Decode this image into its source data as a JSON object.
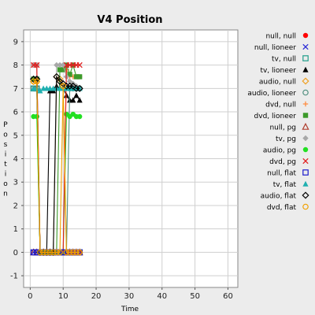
{
  "chart_data": {
    "type": "scatter",
    "title": "V4 Position",
    "xlabel": "Time",
    "ylabel": "Position",
    "xlim": [
      -2,
      63
    ],
    "ylim": [
      -1.5,
      9.5
    ],
    "xticks": [
      0,
      10,
      20,
      30,
      40,
      50,
      60
    ],
    "yticks": [
      -1,
      0,
      1,
      2,
      3,
      4,
      5,
      6,
      7,
      8,
      9
    ],
    "grid": true,
    "legend_position": "right",
    "series": [
      {
        "name": "null, null",
        "color": "#ff0000",
        "marker": "circle-filled",
        "line": true,
        "x": [
          1,
          2,
          3,
          4,
          5,
          6,
          7,
          8,
          9,
          10,
          11,
          12,
          13,
          14,
          15
        ],
        "y": [
          8,
          8,
          0,
          0,
          0,
          0,
          0,
          0,
          0,
          0,
          0,
          0,
          0,
          0,
          0
        ]
      },
      {
        "name": "null, lioneer",
        "color": "#2a2ad6",
        "marker": "x",
        "line": true,
        "x": [
          1,
          2,
          3,
          4,
          5,
          6,
          7,
          8,
          9,
          10,
          11,
          12,
          13,
          14,
          15
        ],
        "y": [
          0,
          0,
          0,
          0,
          0,
          0,
          0,
          0,
          0,
          0,
          0,
          0,
          0,
          0,
          0
        ]
      },
      {
        "name": "tv, null",
        "color": "#1f9e8a",
        "marker": "square-open",
        "line": true,
        "x": [
          1,
          2,
          3,
          4,
          5,
          6,
          7,
          8,
          9,
          10,
          11,
          12,
          13,
          14,
          15
        ],
        "y": [
          7,
          7,
          0,
          0,
          0,
          0,
          0,
          0,
          0,
          0,
          0,
          0,
          0,
          0,
          0
        ]
      },
      {
        "name": "tv, lioneer",
        "color": "#000000",
        "marker": "triangle-filled",
        "line": true,
        "x": [
          1,
          2,
          3,
          4,
          5,
          6,
          7,
          8,
          9,
          10,
          11,
          12,
          13,
          14,
          15
        ],
        "y": [
          7,
          7,
          0,
          0,
          0,
          6.9,
          6.9,
          7.1,
          7,
          7,
          6.7,
          6.5,
          6.5,
          6.7,
          6.5
        ]
      },
      {
        "name": "audio, null",
        "color": "#f0a020",
        "marker": "diamond-open",
        "line": true,
        "x": [
          1,
          2,
          3,
          4,
          5,
          6,
          7,
          8,
          9,
          10,
          11,
          12,
          13,
          14,
          15
        ],
        "y": [
          7.3,
          7.3,
          0,
          0,
          0,
          0,
          0,
          7.5,
          7.4,
          7.1,
          0,
          0,
          0,
          0,
          0
        ]
      },
      {
        "name": "audio, lioneer",
        "color": "#4f8f7f",
        "marker": "circle-open",
        "line": true,
        "x": [
          1,
          2,
          3,
          4,
          5,
          6,
          7,
          8,
          9,
          10,
          11,
          12,
          13,
          14,
          15
        ],
        "y": [
          7,
          7,
          0,
          0,
          0,
          0,
          0,
          0,
          0,
          0,
          0,
          7,
          7,
          7,
          7
        ]
      },
      {
        "name": "dvd, null",
        "color": "#ff8c40",
        "marker": "plus",
        "line": true,
        "x": [
          1,
          2,
          3,
          4,
          5,
          6,
          7,
          8,
          9,
          10,
          11,
          12,
          13,
          14,
          15
        ],
        "y": [
          8,
          8,
          0,
          0,
          0,
          0,
          0,
          0,
          0,
          0,
          7.8,
          7.5,
          7.5,
          7.5,
          7.5
        ]
      },
      {
        "name": "dvd, lioneer",
        "color": "#3c9a2a",
        "marker": "square-filled",
        "line": true,
        "x": [
          1,
          2,
          3,
          4,
          5,
          6,
          7,
          8,
          9,
          10,
          11,
          12,
          13,
          14,
          15
        ],
        "y": [
          7.4,
          7.4,
          0,
          0,
          0,
          0,
          0,
          0,
          7.8,
          7.8,
          8,
          7.6,
          8,
          7.5,
          7.5
        ]
      },
      {
        "name": "null, pg",
        "color": "#b04030",
        "marker": "triangle-open",
        "line": true,
        "x": [
          1,
          2,
          3,
          4,
          5,
          6,
          7,
          8,
          9,
          10,
          11,
          12,
          13,
          14,
          15
        ],
        "y": [
          0,
          0,
          0,
          0,
          0,
          0,
          0,
          0,
          0,
          0,
          0,
          0,
          0,
          0,
          0
        ]
      },
      {
        "name": "tv, pg",
        "color": "#a8a8a8",
        "marker": "diamond-filled",
        "line": true,
        "x": [
          1,
          2,
          3,
          4,
          5,
          6,
          7,
          8,
          9,
          10,
          11,
          12,
          13,
          14,
          15
        ],
        "y": [
          8,
          8,
          0,
          0,
          0,
          0,
          0,
          8,
          8,
          8,
          7.5,
          7.3,
          7.2,
          7.1,
          7
        ]
      },
      {
        "name": "audio, pg",
        "color": "#22e022",
        "marker": "circle-filled",
        "line": true,
        "x": [
          1,
          2,
          3,
          4,
          5,
          6,
          7,
          8,
          9,
          10,
          11,
          12,
          13,
          14,
          15
        ],
        "y": [
          5.8,
          5.8,
          0,
          0,
          0,
          0,
          0,
          0,
          0,
          0,
          5.9,
          5.8,
          5.9,
          5.8,
          5.8
        ]
      },
      {
        "name": "dvd, pg",
        "color": "#e02020",
        "marker": "x",
        "line": true,
        "x": [
          1,
          2,
          3,
          4,
          5,
          6,
          7,
          8,
          9,
          10,
          11,
          12,
          13,
          14,
          15
        ],
        "y": [
          8,
          8,
          0,
          0,
          0,
          0,
          0,
          0,
          0,
          0,
          8,
          8,
          8,
          8,
          8
        ]
      },
      {
        "name": "null, flat",
        "color": "#1a1acc",
        "marker": "square-open",
        "line": true,
        "x": [
          1,
          2,
          3,
          4,
          5,
          6,
          7,
          8,
          9,
          10,
          11,
          12,
          13,
          14,
          15
        ],
        "y": [
          0,
          0,
          0,
          0,
          0,
          0,
          0,
          0,
          0,
          0,
          0,
          0,
          0,
          0,
          0
        ]
      },
      {
        "name": "tv, flat",
        "color": "#20b0b0",
        "marker": "triangle-filled",
        "line": true,
        "x": [
          1,
          2,
          3,
          4,
          5,
          6,
          7,
          8,
          9,
          10,
          11,
          12,
          13,
          14,
          15
        ],
        "y": [
          7,
          7,
          6.9,
          7,
          7,
          7,
          7,
          7,
          7,
          7,
          7,
          7,
          7,
          7,
          7
        ]
      },
      {
        "name": "audio, flat",
        "color": "#000000",
        "marker": "diamond-open",
        "line": true,
        "x": [
          1,
          2,
          3,
          4,
          5,
          6,
          7,
          8,
          9,
          10,
          11,
          12,
          13,
          14,
          15
        ],
        "y": [
          7.4,
          7.4,
          0,
          0,
          0,
          0,
          0,
          7.5,
          7.3,
          7.2,
          7.1,
          7.1,
          7.1,
          7,
          7
        ]
      },
      {
        "name": "dvd, flat",
        "color": "#f0a000",
        "marker": "circle-open",
        "line": true,
        "x": [
          1,
          2,
          3,
          4,
          5,
          6,
          7,
          8,
          9,
          10,
          11,
          12,
          13,
          14,
          15
        ],
        "y": [
          7.3,
          7.3,
          0,
          0,
          0,
          0,
          0,
          0,
          0,
          7.1,
          0,
          0,
          0,
          0,
          0
        ]
      }
    ]
  }
}
